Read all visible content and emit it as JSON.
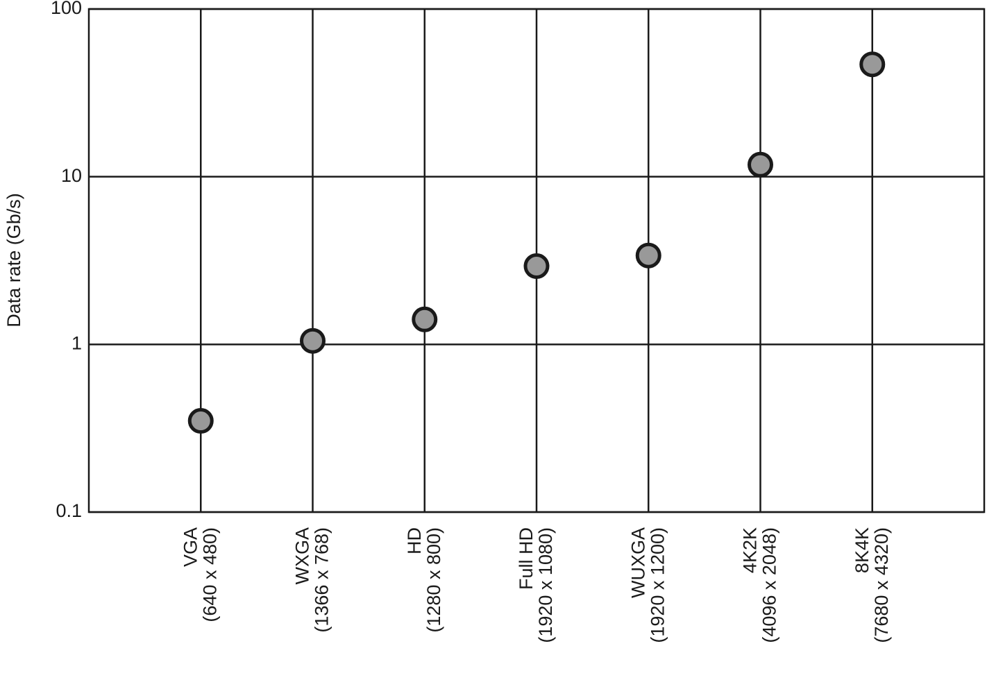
{
  "chart_data": {
    "type": "scatter",
    "y_label": "Data rate (Gb/s)",
    "categories": [
      [
        "VGA",
        "(640 x 480)"
      ],
      [
        "WXGA",
        "(1366 x 768)"
      ],
      [
        "HD",
        "(1280 x 800)"
      ],
      [
        "Full HD",
        "(1920 x 1080)"
      ],
      [
        "WUXGA",
        "(1920 x 1200)"
      ],
      [
        "4K2K",
        "(4096 x 2048)"
      ],
      [
        "8K4K",
        "(7680 x 4320)"
      ]
    ],
    "values": [
      0.35,
      1.05,
      1.41,
      2.93,
      3.39,
      11.8,
      46.8
    ],
    "color": "#999999",
    "y_log": true,
    "ylim": [
      0.1,
      100
    ],
    "yticks": [
      0.1,
      1,
      10,
      100
    ],
    "grid": true
  }
}
